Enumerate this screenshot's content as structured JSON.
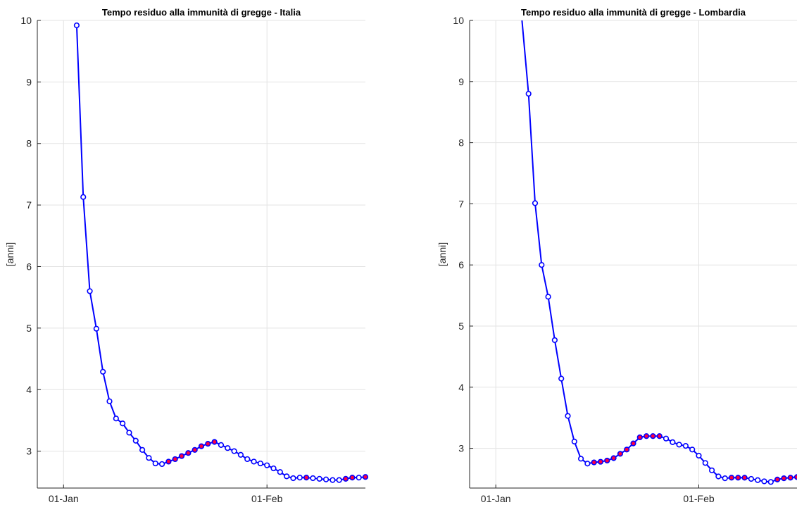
{
  "chart_data": [
    {
      "type": "line",
      "title": "Tempo residuo alla immunità di gregge - Italia",
      "xlabel": "",
      "ylabel": "[anni]",
      "x_tick_labels": [
        "01-Jan",
        "01-Feb"
      ],
      "y_tick_labels": [
        "3",
        "4",
        "5",
        "6",
        "7",
        "8",
        "9",
        "10"
      ],
      "ylim": [
        2.4,
        10
      ],
      "xlim": [
        "2020-12-28",
        "2021-02-16"
      ],
      "grid": true,
      "line_color": "#0000ff",
      "highlight_color": "#ff0040",
      "series": [
        {
          "x": [
            "2021-01-03",
            "2021-01-04",
            "2021-01-05",
            "2021-01-06",
            "2021-01-07",
            "2021-01-08",
            "2021-01-09",
            "2021-01-10",
            "2021-01-11",
            "2021-01-12",
            "2021-01-13",
            "2021-01-14",
            "2021-01-15",
            "2021-01-16",
            "2021-01-17",
            "2021-01-18",
            "2021-01-19",
            "2021-01-20",
            "2021-01-21",
            "2021-01-22",
            "2021-01-23",
            "2021-01-24",
            "2021-01-25",
            "2021-01-26",
            "2021-01-27",
            "2021-01-28",
            "2021-01-29",
            "2021-01-30",
            "2021-01-31",
            "2021-02-01",
            "2021-02-02",
            "2021-02-03",
            "2021-02-04",
            "2021-02-05",
            "2021-02-06",
            "2021-02-07",
            "2021-02-08",
            "2021-02-09",
            "2021-02-10",
            "2021-02-11",
            "2021-02-12",
            "2021-02-13",
            "2021-02-14",
            "2021-02-15",
            "2021-02-16"
          ],
          "values": [
            9.92,
            7.13,
            5.6,
            4.99,
            4.29,
            3.81,
            3.53,
            3.45,
            3.3,
            3.17,
            3.02,
            2.89,
            2.8,
            2.79,
            2.83,
            2.87,
            2.92,
            2.97,
            3.02,
            3.08,
            3.12,
            3.15,
            3.1,
            3.05,
            3.0,
            2.94,
            2.87,
            2.83,
            2.8,
            2.77,
            2.72,
            2.66,
            2.59,
            2.56,
            2.57,
            2.57,
            2.56,
            2.55,
            2.54,
            2.53,
            2.53,
            2.55,
            2.57,
            2.57,
            2.58
          ],
          "highlighted": [
            false,
            false,
            false,
            false,
            false,
            false,
            false,
            false,
            false,
            false,
            false,
            false,
            false,
            false,
            true,
            true,
            true,
            true,
            true,
            true,
            true,
            true,
            false,
            false,
            false,
            false,
            false,
            false,
            false,
            false,
            false,
            false,
            false,
            false,
            false,
            true,
            false,
            false,
            false,
            false,
            false,
            true,
            true,
            false,
            true
          ]
        }
      ]
    },
    {
      "type": "line",
      "title": "Tempo residuo alla immunità di gregge - Lombardia",
      "xlabel": "",
      "ylabel": "[anni]",
      "x_tick_labels": [
        "01-Jan",
        "01-Feb"
      ],
      "y_tick_labels": [
        "3",
        "4",
        "5",
        "6",
        "7",
        "8",
        "9",
        "10"
      ],
      "ylim": [
        2.35,
        10
      ],
      "xlim": [
        "2020-12-28",
        "2021-02-16"
      ],
      "grid": true,
      "line_color": "#0000ff",
      "highlight_color": "#ff0040",
      "series": [
        {
          "x": [
            "2021-01-06",
            "2021-01-07",
            "2021-01-08",
            "2021-01-09",
            "2021-01-10",
            "2021-01-11",
            "2021-01-12",
            "2021-01-13",
            "2021-01-14",
            "2021-01-15",
            "2021-01-16",
            "2021-01-17",
            "2021-01-18",
            "2021-01-19",
            "2021-01-20",
            "2021-01-21",
            "2021-01-22",
            "2021-01-23",
            "2021-01-24",
            "2021-01-25",
            "2021-01-26",
            "2021-01-27",
            "2021-01-28",
            "2021-01-29",
            "2021-01-30",
            "2021-01-31",
            "2021-02-01",
            "2021-02-02",
            "2021-02-03",
            "2021-02-04",
            "2021-02-05",
            "2021-02-06",
            "2021-02-07",
            "2021-02-08",
            "2021-02-09",
            "2021-02-10",
            "2021-02-11",
            "2021-02-12",
            "2021-02-13",
            "2021-02-14",
            "2021-02-15",
            "2021-02-16"
          ],
          "values": [
            8.8,
            7.01,
            6.0,
            5.48,
            4.77,
            4.14,
            3.53,
            3.11,
            2.83,
            2.75,
            2.77,
            2.78,
            2.8,
            2.84,
            2.91,
            2.98,
            3.08,
            3.18,
            3.2,
            3.2,
            3.2,
            3.16,
            3.1,
            3.06,
            3.04,
            2.98,
            2.88,
            2.76,
            2.64,
            2.54,
            2.51,
            2.52,
            2.52,
            2.52,
            2.5,
            2.48,
            2.46,
            2.45,
            2.49,
            2.51,
            2.52,
            2.53
          ],
          "highlighted": [
            false,
            false,
            false,
            false,
            false,
            false,
            false,
            false,
            false,
            false,
            true,
            true,
            true,
            true,
            true,
            true,
            true,
            true,
            true,
            true,
            true,
            false,
            false,
            false,
            false,
            false,
            false,
            false,
            false,
            false,
            false,
            true,
            true,
            true,
            false,
            false,
            false,
            false,
            true,
            true,
            true,
            true
          ]
        }
      ],
      "line_start": {
        "x": "2021-01-05",
        "y": 10
      }
    }
  ]
}
